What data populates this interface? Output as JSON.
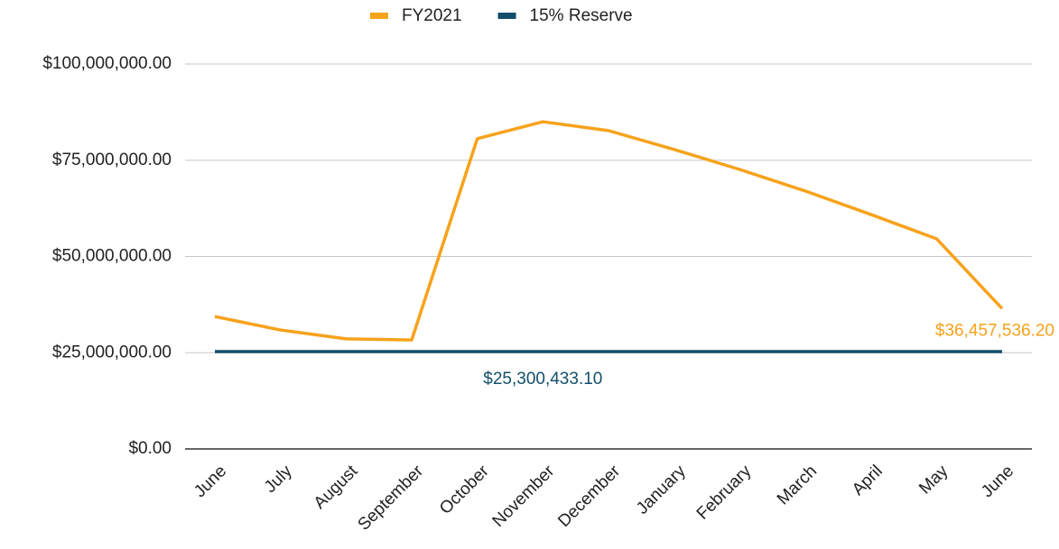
{
  "chart_data": {
    "type": "line",
    "categories": [
      "June",
      "July",
      "August",
      "September",
      "October",
      "November",
      "December",
      "January",
      "February",
      "March",
      "April",
      "May",
      "June"
    ],
    "series": [
      {
        "name": "FY2021",
        "color": "#f7a21b",
        "values": [
          34400000,
          30900000,
          28600000,
          28300000,
          80600000,
          85000000,
          82700000,
          77800000,
          72600000,
          67000000,
          60900000,
          54600000,
          36457536.2
        ],
        "value_labels": [
          null,
          null,
          null,
          null,
          null,
          null,
          null,
          null,
          null,
          null,
          null,
          null,
          "$36,457,536.20"
        ]
      },
      {
        "name": "15% Reserve",
        "color": "#134f6b",
        "values": [
          25300433.1,
          25300433.1,
          25300433.1,
          25300433.1,
          25300433.1,
          25300433.1,
          25300433.1,
          25300433.1,
          25300433.1,
          25300433.1,
          25300433.1,
          25300433.1,
          25300433.1
        ],
        "value_labels": [
          null,
          null,
          null,
          null,
          null,
          "$25,300,433.10",
          null,
          null,
          null,
          null,
          null,
          null,
          null
        ]
      }
    ],
    "ylim": [
      0,
      100000000
    ],
    "yticks": [
      {
        "value": 0,
        "label": "$0.00"
      },
      {
        "value": 25000000,
        "label": "$25,000,000.00"
      },
      {
        "value": 50000000,
        "label": "$50,000,000.00"
      },
      {
        "value": 75000000,
        "label": "$75,000,000.00"
      },
      {
        "value": 100000000,
        "label": "$100,000,000.00"
      }
    ],
    "grid": true,
    "legend": "top"
  }
}
